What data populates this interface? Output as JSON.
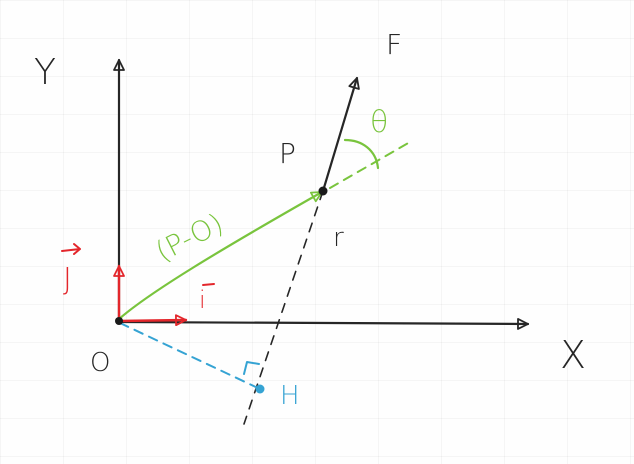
{
  "labels": {
    "axis_y": "Y",
    "axis_x": "X",
    "origin": "O",
    "point_p": "P",
    "force": "F",
    "angle": "θ",
    "vector_p_minus_o": "(P-O)",
    "unit_i": "i",
    "unit_j": "J",
    "line_r": "r",
    "foot_h": "H"
  },
  "colors": {
    "ink": "#262626",
    "red": "#e3262b",
    "green": "#79c43d",
    "blue": "#35a3d3"
  }
}
